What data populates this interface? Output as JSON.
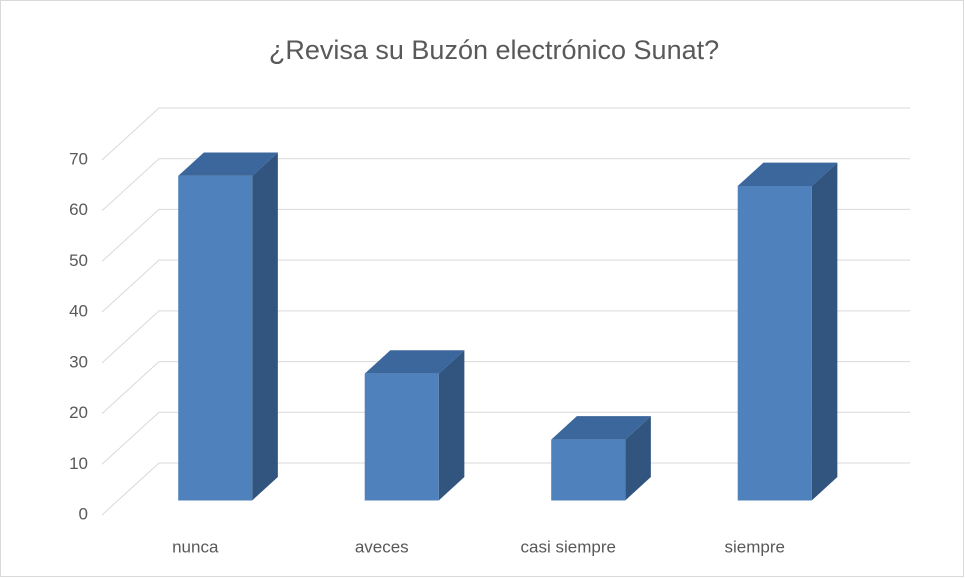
{
  "chart_data": {
    "type": "bar3d",
    "title": "¿Revisa su Buzón electrónico Sunat?",
    "categories": [
      "nunca",
      "aveces",
      "casi siempre",
      "siempre"
    ],
    "values": [
      64,
      25,
      12,
      62
    ],
    "color": "#4f81bd",
    "ylim": [
      0,
      70
    ],
    "yticks": [
      0,
      10,
      20,
      30,
      40,
      50,
      60,
      70
    ],
    "grid": true
  }
}
